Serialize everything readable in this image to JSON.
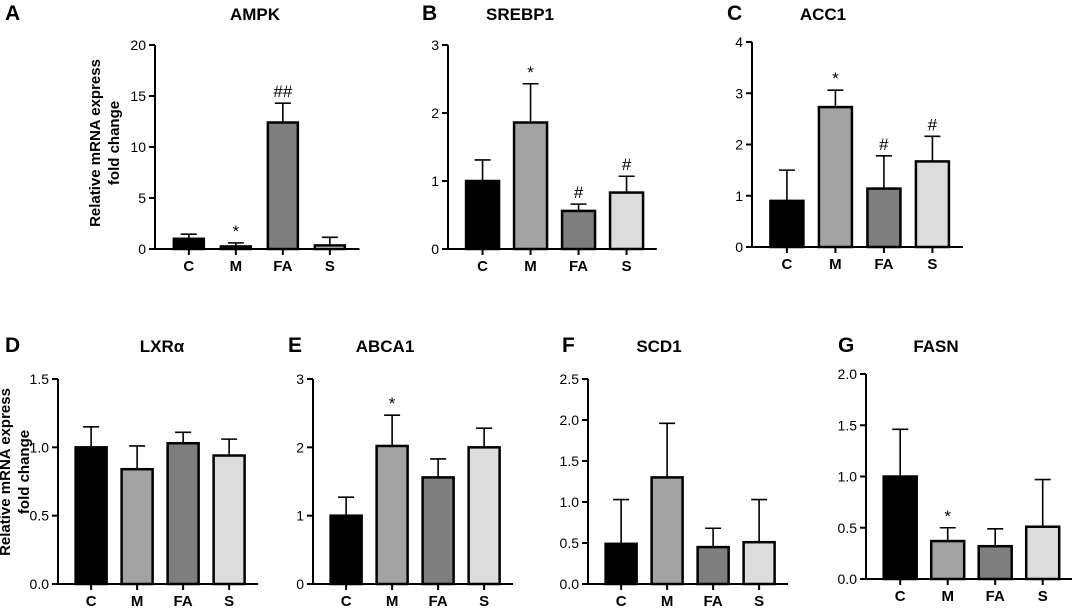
{
  "figure": {
    "ylabel_line1": "Relative mRNA express",
    "ylabel_line2": "fold change"
  },
  "colors": {
    "C": "#000000",
    "M": "#a3a3a3",
    "FA": "#7e7e7e",
    "S": "#dcdcdc"
  },
  "chart_data": [
    {
      "type": "bar",
      "letter": "A",
      "title": "AMPK",
      "categories": [
        "C",
        "M",
        "FA",
        "S"
      ],
      "values": [
        1.0,
        0.25,
        12.4,
        0.35
      ],
      "errors": [
        0.45,
        0.35,
        1.9,
        0.8
      ],
      "significance": [
        "",
        "*",
        "##",
        ""
      ],
      "ylim": [
        0,
        20
      ],
      "yticks": [
        "0",
        "5",
        "10",
        "15",
        "20"
      ],
      "ylabel": "Relative mRNA express fold change"
    },
    {
      "type": "bar",
      "letter": "B",
      "title": "SREBP1",
      "categories": [
        "C",
        "M",
        "FA",
        "S"
      ],
      "values": [
        1.0,
        1.86,
        0.56,
        0.83
      ],
      "errors": [
        0.31,
        0.57,
        0.1,
        0.24
      ],
      "significance": [
        "",
        "*",
        "#",
        "#"
      ],
      "ylim": [
        0,
        3
      ],
      "yticks": [
        "0",
        "1",
        "2",
        "3"
      ],
      "ylabel": ""
    },
    {
      "type": "bar",
      "letter": "C",
      "title": "ACC1",
      "categories": [
        "C",
        "M",
        "FA",
        "S"
      ],
      "values": [
        0.9,
        2.73,
        1.14,
        1.67
      ],
      "errors": [
        0.6,
        0.33,
        0.64,
        0.49
      ],
      "significance": [
        "",
        "*",
        "#",
        "#"
      ],
      "ylim": [
        0,
        4
      ],
      "yticks": [
        "0",
        "1",
        "2",
        "3",
        "4"
      ],
      "ylabel": ""
    },
    {
      "type": "bar",
      "letter": "D",
      "title": "LXRα",
      "categories": [
        "C",
        "M",
        "FA",
        "S"
      ],
      "values": [
        1.0,
        0.84,
        1.03,
        0.94
      ],
      "errors": [
        0.15,
        0.17,
        0.08,
        0.12
      ],
      "significance": [
        "",
        "",
        "",
        ""
      ],
      "ylim": [
        0,
        1.5
      ],
      "yticks": [
        "0.0",
        "0.5",
        "1.0",
        "1.5"
      ],
      "ylabel": "Relative mRNA express fold change"
    },
    {
      "type": "bar",
      "letter": "E",
      "title": "ABCA1",
      "categories": [
        "C",
        "M",
        "FA",
        "S"
      ],
      "values": [
        1.0,
        2.02,
        1.56,
        2.0
      ],
      "errors": [
        0.27,
        0.45,
        0.27,
        0.28
      ],
      "significance": [
        "",
        "*",
        "",
        ""
      ],
      "ylim": [
        0,
        3
      ],
      "yticks": [
        "0",
        "1",
        "2",
        "3"
      ],
      "ylabel": ""
    },
    {
      "type": "bar",
      "letter": "F",
      "title": "SCD1",
      "categories": [
        "C",
        "M",
        "FA",
        "S"
      ],
      "values": [
        0.49,
        1.3,
        0.45,
        0.51
      ],
      "errors": [
        0.54,
        0.66,
        0.23,
        0.52
      ],
      "significance": [
        "",
        "",
        "",
        ""
      ],
      "ylim": [
        0,
        2.5
      ],
      "yticks": [
        "0.0",
        "0.5",
        "1.0",
        "1.5",
        "2.0",
        "2.5"
      ],
      "ylabel": ""
    },
    {
      "type": "bar",
      "letter": "G",
      "title": "FASN",
      "categories": [
        "C",
        "M",
        "FA",
        "S"
      ],
      "values": [
        1.0,
        0.37,
        0.32,
        0.51
      ],
      "errors": [
        0.46,
        0.13,
        0.17,
        0.46
      ],
      "significance": [
        "",
        "*",
        "",
        ""
      ],
      "ylim": [
        0,
        2.0
      ],
      "yticks": [
        "0.0",
        "0.5",
        "1.0",
        "1.5",
        "2.0"
      ],
      "ylabel": ""
    }
  ]
}
